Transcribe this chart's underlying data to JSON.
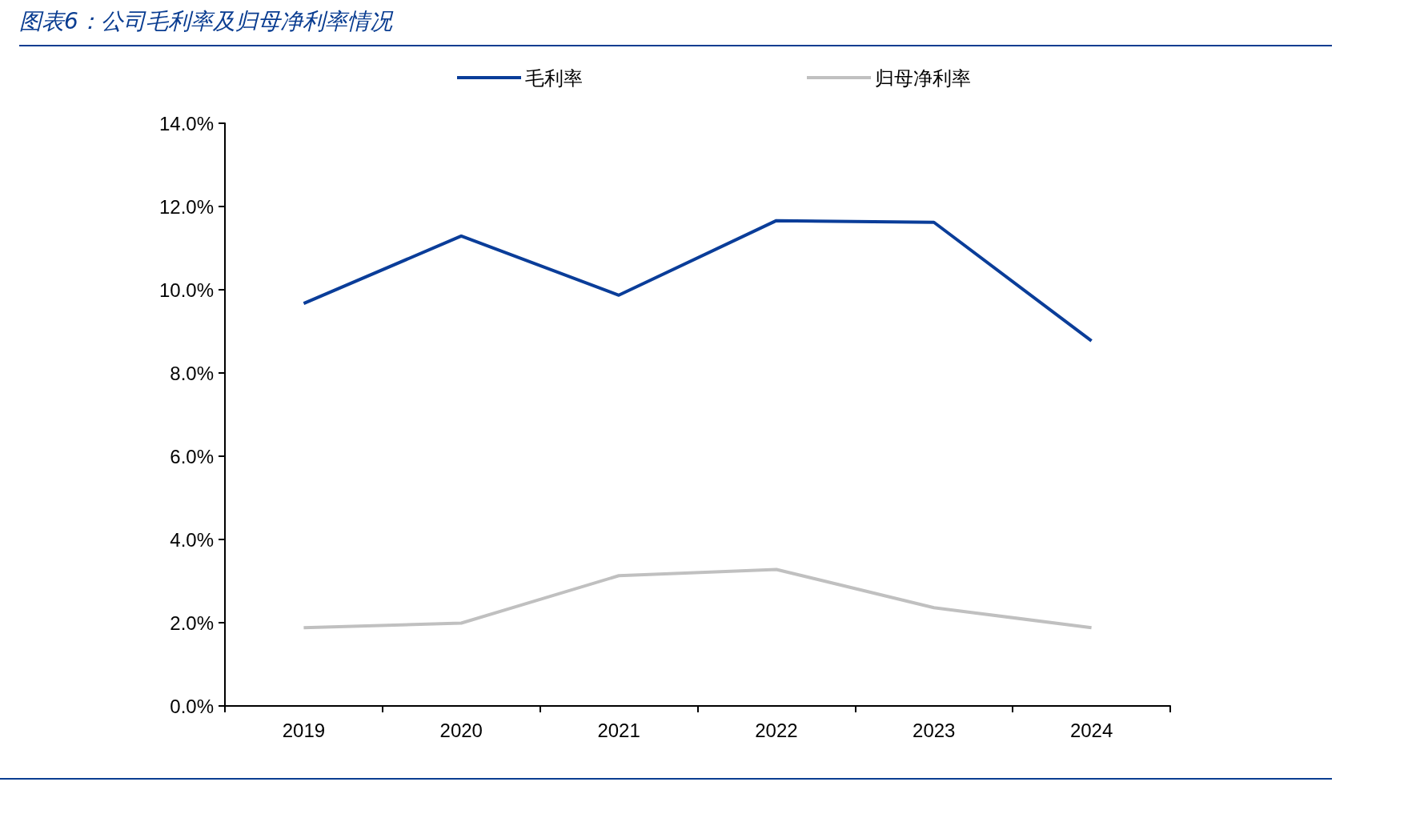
{
  "chart_data": {
    "type": "line",
    "title": "图表6：公司毛利率及归母净利率情况",
    "categories": [
      "2019",
      "2020",
      "2021",
      "2022",
      "2023",
      "2024"
    ],
    "series": [
      {
        "name": "毛利率",
        "color": "#0a3d99",
        "values": [
          9.67,
          11.29,
          9.87,
          11.66,
          11.62,
          8.77
        ]
      },
      {
        "name": "归母净利率",
        "color": "#c0c0c0",
        "values": [
          1.88,
          1.99,
          3.13,
          3.28,
          2.36,
          1.88
        ]
      }
    ],
    "ylim": [
      0,
      14
    ],
    "yticks": [
      {
        "value": 0,
        "label": "0.0%"
      },
      {
        "value": 2,
        "label": "2.0%"
      },
      {
        "value": 4,
        "label": "4.0%"
      },
      {
        "value": 6,
        "label": "6.0%"
      },
      {
        "value": 8,
        "label": "8.0%"
      },
      {
        "value": 10,
        "label": "10.0%"
      },
      {
        "value": 12,
        "label": "12.0%"
      },
      {
        "value": 14,
        "label": "14.0%"
      }
    ],
    "grid": false,
    "legend": "top",
    "marker": "none",
    "line_style": "solid"
  }
}
